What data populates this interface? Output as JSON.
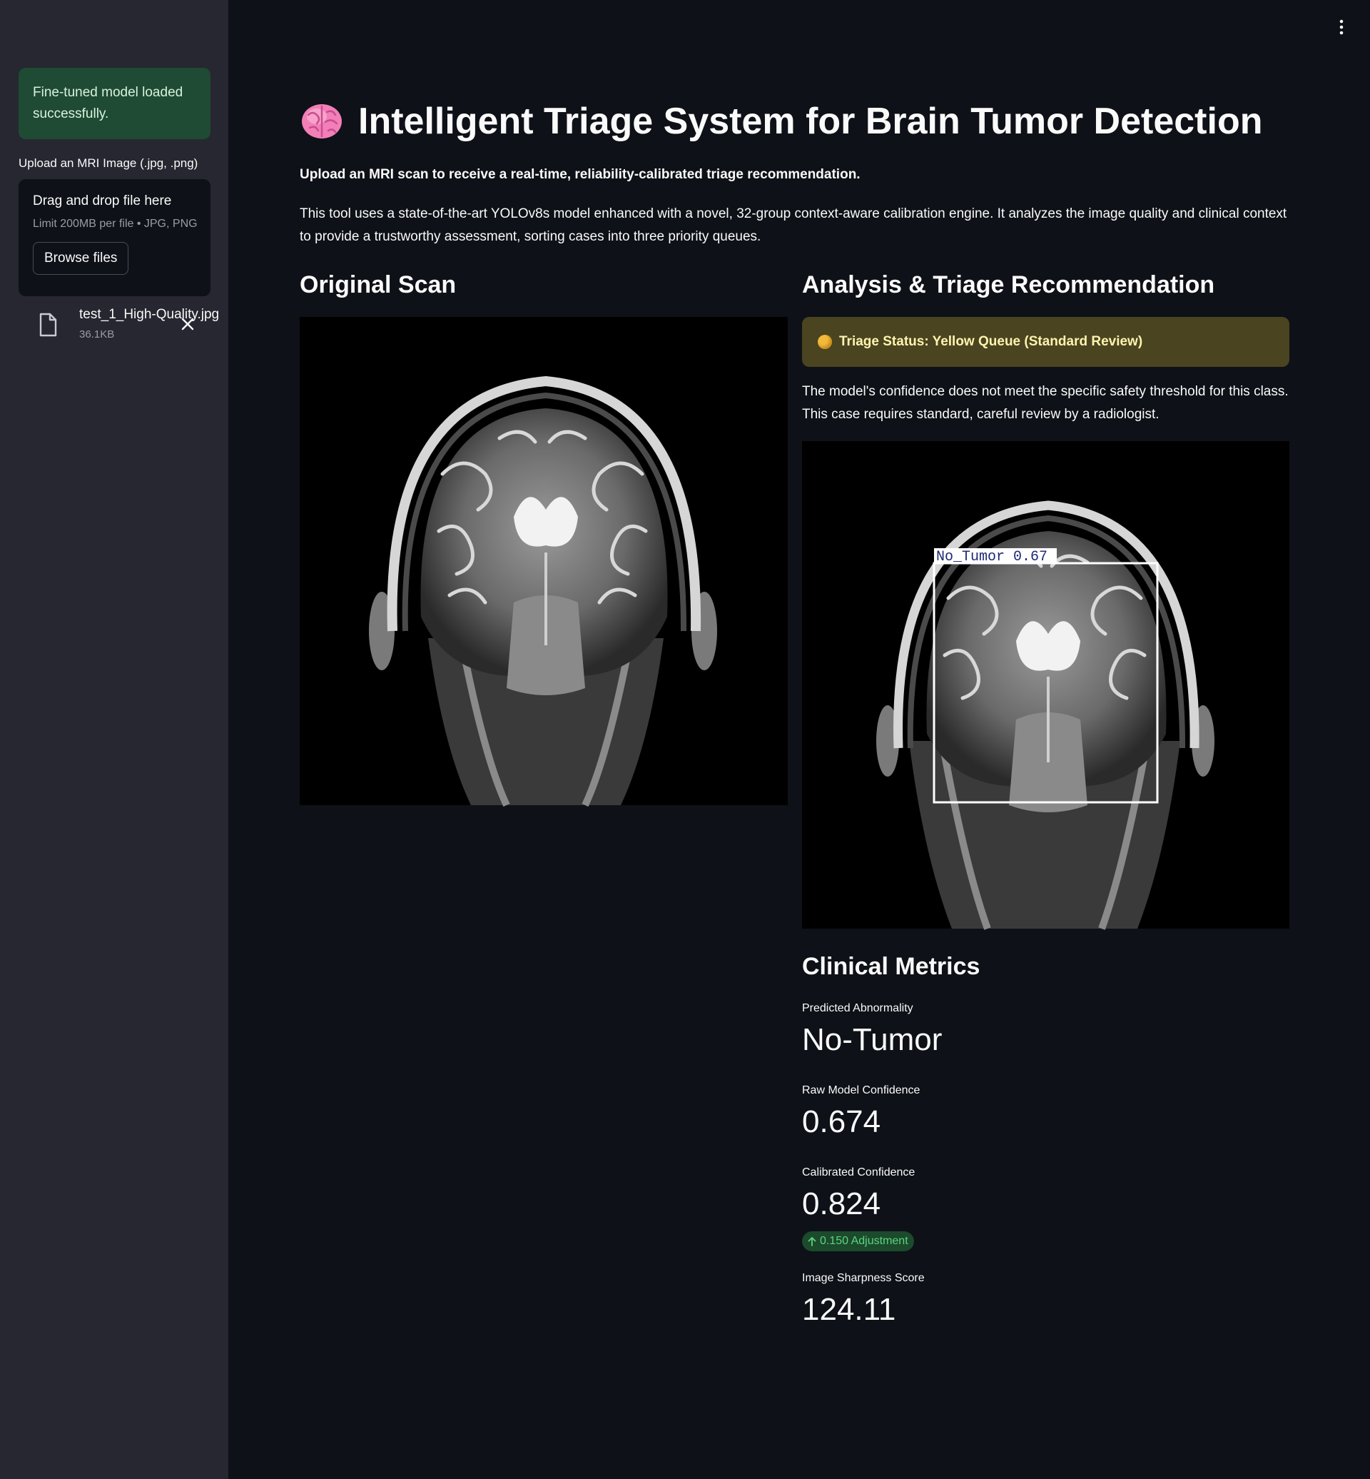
{
  "sidebar": {
    "status_message": "Fine-tuned model loaded successfully.",
    "uploader": {
      "label": "Upload an MRI Image (.jpg, .png)",
      "dropzone_title": "Drag and drop file here",
      "limit_text": "Limit 200MB per file • JPG, PNG",
      "browse_label": "Browse files"
    },
    "file": {
      "name": "test_1_High-Quality.jpg",
      "size": "36.1KB"
    }
  },
  "header": {
    "title": "Intelligent Triage System for Brain Tumor Detection",
    "subtitle": "Upload an MRI scan to receive a real-time, reliability-calibrated triage recommendation.",
    "description": "This tool uses a state-of-the-art YOLOv8s model enhanced with a novel, 32-group context-aware calibration engine. It analyzes the image quality and clinical context to provide a trustworthy assessment, sorting cases into three priority queues."
  },
  "original": {
    "heading": "Original Scan"
  },
  "analysis": {
    "heading": "Analysis & Triage Recommendation",
    "triage_status": "Triage Status: Yellow Queue (Standard Review)",
    "triage_description": "The model's confidence does not meet the specific safety threshold for this class. This case requires standard, careful review by a radiologist.",
    "detection_label": "No_Tumor 0.67"
  },
  "metrics": {
    "heading": "Clinical Metrics",
    "predicted_label": "Predicted Abnormality",
    "predicted_value": "No-Tumor",
    "raw_label": "Raw Model Confidence",
    "raw_value": "0.674",
    "calibrated_label": "Calibrated Confidence",
    "calibrated_value": "0.824",
    "calibrated_delta": "0.150 Adjustment",
    "sharpness_label": "Image Sharpness Score",
    "sharpness_value": "124.11"
  },
  "colors": {
    "background": "#0e1117",
    "sidebar": "#262730",
    "success": "#1f4a33",
    "warning": "#4a4420",
    "delta_positive": "#5ed37f"
  }
}
